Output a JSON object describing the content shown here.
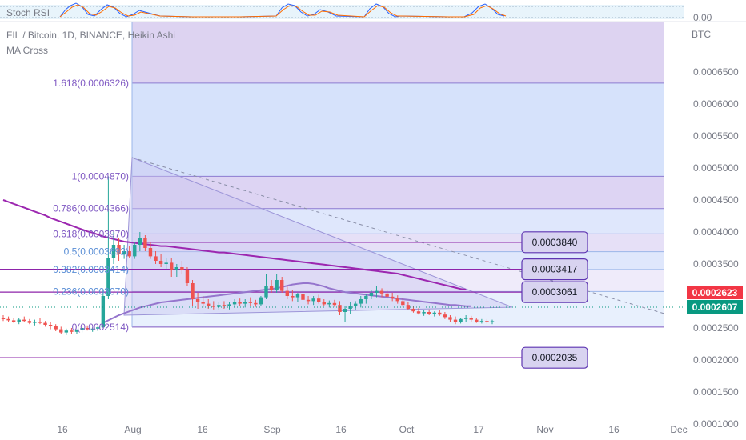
{
  "legend": {
    "symbol_line": "FIL / Bitcoin, 1D, BINANCE, Heikin Ashi",
    "indicator_line": "MA Cross",
    "stoch_label": "Stoch RSI"
  },
  "axis": {
    "currency": "BTC",
    "stoch_value": "0.00",
    "y_ticks": [
      "0.0006500",
      "0.0006000",
      "0.0005500",
      "0.0005000",
      "0.0004500",
      "0.0004000",
      "0.0003500",
      "0.0003000",
      "0.0002500",
      "0.0002000",
      "0.0001500",
      "0.0001000"
    ],
    "x_ticks": [
      "16",
      "Aug",
      "16",
      "Sep",
      "16",
      "Oct",
      "17",
      "Nov",
      "16",
      "Dec"
    ]
  },
  "price_tags": [
    {
      "label": "0.0002623",
      "color": "#f23645"
    },
    {
      "label": "0.0002607",
      "color": "#089981"
    }
  ],
  "chart_data": {
    "type": "candlestick",
    "title": "FIL / Bitcoin, 1D, BINANCE, Heikin Ashi",
    "ylabel": "BTC",
    "ylim": [
      9.75e-05,
      0.00068
    ],
    "scale": "linear",
    "grid": false,
    "fib_levels": [
      {
        "label": "1.618(0.0006326)",
        "ratio": 1.618,
        "value": 0.0006326
      },
      {
        "label": "1(0.0004870)",
        "ratio": 1,
        "value": 0.000487
      },
      {
        "label": "0.786(0.0004366)",
        "ratio": 0.786,
        "value": 0.0004366
      },
      {
        "label": "0.618(0.0003970)",
        "ratio": 0.618,
        "value": 0.000397
      },
      {
        "label": "0.5(0.0003692)",
        "ratio": 0.5,
        "value": 0.0003692
      },
      {
        "label": "0.382(0.0003414)",
        "ratio": 0.382,
        "value": 0.0003414
      },
      {
        "label": "0.236(0.0003070)",
        "ratio": 0.236,
        "value": 0.000307
      },
      {
        "label": "0(0.0002514)",
        "ratio": 0,
        "value": 0.0002514
      }
    ],
    "horizontal_levels": [
      "0.0003840",
      "0.0003417",
      "0.0003061",
      "0.0002035"
    ],
    "candles": [
      [
        0.000265,
        0.00027,
        0.000261,
        0.000264
      ],
      [
        0.000264,
        0.000268,
        0.00026,
        0.000262
      ],
      [
        0.000262,
        0.000266,
        0.000258,
        0.00026
      ],
      [
        0.00026,
        0.000265,
        0.000256,
        0.000263
      ],
      [
        0.000263,
        0.000268,
        0.000259,
        0.000261
      ],
      [
        0.000261,
        0.000264,
        0.000256,
        0.000258
      ],
      [
        0.000258,
        0.000263,
        0.000254,
        0.00026
      ],
      [
        0.00026,
        0.000265,
        0.000256,
        0.000258
      ],
      [
        0.000258,
        0.000261,
        0.000252,
        0.000255
      ],
      [
        0.000255,
        0.00026,
        0.000248,
        0.000253
      ],
      [
        0.000253,
        0.000256,
        0.000245,
        0.000248
      ],
      [
        0.000248,
        0.000252,
        0.00024,
        0.000243
      ],
      [
        0.000243,
        0.000249,
        0.000239,
        0.000246
      ],
      [
        0.000246,
        0.00025,
        0.00024,
        0.000244
      ],
      [
        0.000244,
        0.000248,
        0.000241,
        0.000247
      ],
      [
        0.000247,
        0.000252,
        0.000243,
        0.00025
      ],
      [
        0.00025,
        0.000254,
        0.000246,
        0.000248
      ],
      [
        0.000248,
        0.000251,
        0.000244,
        0.000249
      ],
      [
        0.000249,
        0.000253,
        0.000245,
        0.000251
      ],
      [
        0.000251,
        0.00031,
        0.00025,
        0.0003
      ],
      [
        0.0003,
        0.000487,
        0.000295,
        0.00036
      ],
      [
        0.00036,
        0.0004,
        0.00035,
        0.00038
      ],
      [
        0.00038,
        0.00039,
        0.000355,
        0.000365
      ],
      [
        0.000365,
        0.00038,
        0.000358,
        0.00037
      ],
      [
        0.00037,
        0.000378,
        0.00036,
        0.000362
      ],
      [
        0.000362,
        0.000385,
        0.000358,
        0.00038
      ],
      [
        0.00038,
        0.0004,
        0.00037,
        0.00039
      ],
      [
        0.00039,
        0.000395,
        0.00037,
        0.000375
      ],
      [
        0.000375,
        0.000385,
        0.000358,
        0.000362
      ],
      [
        0.000362,
        0.00037,
        0.00035,
        0.000355
      ],
      [
        0.000355,
        0.000365,
        0.000345,
        0.00035
      ],
      [
        0.00035,
        0.00036,
        0.000342,
        0.000352
      ],
      [
        0.000352,
        0.00036,
        0.00033,
        0.00034
      ],
      [
        0.00034,
        0.00035,
        0.00033,
        0.000345
      ],
      [
        0.000345,
        0.000355,
        0.000335,
        0.00034
      ],
      [
        0.00034,
        0.000345,
        0.000315,
        0.00032
      ],
      [
        0.00032,
        0.000325,
        0.000285,
        0.000295
      ],
      [
        0.000295,
        0.000305,
        0.00028,
        0.00029
      ],
      [
        0.00029,
        0.0003,
        0.000282,
        0.000288
      ],
      [
        0.000288,
        0.000295,
        0.00028,
        0.000285
      ],
      [
        0.000285,
        0.000292,
        0.000279,
        0.000283
      ],
      [
        0.000283,
        0.00029,
        0.000278,
        0.000286
      ],
      [
        0.000286,
        0.000292,
        0.00028,
        0.000284
      ],
      [
        0.000284,
        0.00029,
        0.000279,
        0.000287
      ],
      [
        0.000287,
        0.000295,
        0.000282,
        0.00029
      ],
      [
        0.00029,
        0.000296,
        0.000284,
        0.000288
      ],
      [
        0.000288,
        0.000295,
        0.000282,
        0.000291
      ],
      [
        0.000291,
        0.000298,
        0.000285,
        0.000289
      ],
      [
        0.000289,
        0.000294,
        0.000283,
        0.000287
      ],
      [
        0.000287,
        0.0003,
        0.000285,
        0.000298
      ],
      [
        0.000298,
        0.000335,
        0.000295,
        0.000315
      ],
      [
        0.000315,
        0.000325,
        0.000305,
        0.00031
      ],
      [
        0.00031,
        0.000335,
        0.000305,
        0.000325
      ],
      [
        0.000325,
        0.00033,
        0.000305,
        0.000308
      ],
      [
        0.000308,
        0.000315,
        0.000295,
        0.0003
      ],
      [
        0.0003,
        0.00031,
        0.000292,
        0.000298
      ],
      [
        0.000298,
        0.000305,
        0.00029,
        0.000303
      ],
      [
        0.000303,
        0.000306,
        0.00029,
        0.000294
      ],
      [
        0.000294,
        0.0003,
        0.000287,
        0.000292
      ],
      [
        0.000292,
        0.0003,
        0.000286,
        0.000296
      ],
      [
        0.000296,
        0.000302,
        0.000288,
        0.00029
      ],
      [
        0.00029,
        0.000295,
        0.000284,
        0.000287
      ],
      [
        0.000287,
        0.000293,
        0.000282,
        0.000289
      ],
      [
        0.000289,
        0.000294,
        0.000283,
        0.000286
      ],
      [
        0.000286,
        0.000292,
        0.00027,
        0.000275
      ],
      [
        0.000275,
        0.000285,
        0.00026,
        0.00028
      ],
      [
        0.00028,
        0.00029,
        0.000272,
        0.000285
      ],
      [
        0.000285,
        0.000292,
        0.000278,
        0.000288
      ],
      [
        0.000288,
        0.0003,
        0.000282,
        0.000295
      ],
      [
        0.000295,
        0.000303,
        0.000288,
        0.0003
      ],
      [
        0.0003,
        0.00031,
        0.000295,
        0.000305
      ],
      [
        0.000305,
        0.000315,
        0.000298,
        0.000308
      ],
      [
        0.000308,
        0.000312,
        0.000298,
        0.000304
      ],
      [
        0.000304,
        0.00031,
        0.000296,
        0.000299
      ],
      [
        0.000299,
        0.000305,
        0.000292,
        0.000296
      ],
      [
        0.000296,
        0.000301,
        0.000288,
        0.000292
      ],
      [
        0.000292,
        0.000297,
        0.000283,
        0.000286
      ],
      [
        0.000286,
        0.00029,
        0.000278,
        0.00028
      ],
      [
        0.00028,
        0.000285,
        0.000274,
        0.000276
      ],
      [
        0.000276,
        0.000281,
        0.000271,
        0.000273
      ],
      [
        0.000273,
        0.000278,
        0.000269,
        0.000275
      ],
      [
        0.000275,
        0.000279,
        0.00027,
        0.000272
      ],
      [
        0.000272,
        0.000276,
        0.000268,
        0.000274
      ],
      [
        0.000274,
        0.000278,
        0.000269,
        0.000271
      ],
      [
        0.000271,
        0.000275,
        0.000264,
        0.000267
      ],
      [
        0.000267,
        0.00027,
        0.00026,
        0.000263
      ],
      [
        0.000263,
        0.000268,
        0.000256,
        0.00026
      ],
      [
        0.00026,
        0.000266,
        0.000257,
        0.000264
      ],
      [
        0.000264,
        0.00027,
        0.00026,
        0.000266
      ],
      [
        0.000266,
        0.000269,
        0.00026,
        0.000263
      ],
      [
        0.000263,
        0.000266,
        0.000258,
        0.00026
      ],
      [
        0.00026,
        0.000264,
        0.000257,
        0.000261
      ],
      [
        0.000261,
        0.000264,
        0.000257,
        0.000259
      ],
      [
        0.000259,
        0.000263,
        0.000256,
        0.0002607
      ]
    ],
    "ma_long": [
      0.00045,
      0.000447,
      0.000444,
      0.000441,
      0.000438,
      0.000435,
      0.000432,
      0.000429,
      0.000426,
      0.000422,
      0.000419,
      0.000416,
      0.000413,
      0.00041,
      0.000407,
      0.000404,
      0.000401,
      0.000399,
      0.000396,
      0.000393,
      0.000391,
      0.000389,
      0.000387,
      0.000385,
      0.000384,
      0.000383,
      0.000382,
      0.000381,
      0.00038,
      0.000379,
      0.000378,
      0.000378,
      0.000377,
      0.000376,
      0.000375,
      0.000374,
      0.000373,
      0.000372,
      0.000371,
      0.00037,
      0.000369,
      0.000368,
      0.000368,
      0.000367,
      0.000366,
      0.000365,
      0.000364,
      0.000363,
      0.000362,
      0.000361,
      0.00036,
      0.000359,
      0.000358,
      0.000357,
      0.000356,
      0.000355,
      0.000354,
      0.000353,
      0.000352,
      0.000351,
      0.00035,
      0.000349,
      0.000348,
      0.000347,
      0.000346,
      0.000345,
      0.000344,
      0.000343,
      0.000342,
      0.000341,
      0.00034,
      0.000339,
      0.000338,
      0.000337,
      0.000336,
      0.000335,
      0.000333,
      0.000331,
      0.000329,
      0.000327,
      0.000325,
      0.000323,
      0.000321,
      0.000319,
      0.000317,
      0.000315,
      0.000313,
      0.000311,
      0.00031
    ],
    "ma_long_start": 0,
    "ma_short": [
      0.000258,
      0.000262,
      0.000266,
      0.00027,
      0.000273,
      0.000276,
      0.000279,
      0.000282,
      0.000284,
      0.000286,
      0.000288,
      0.00029,
      0.000291,
      0.000292,
      0.000293,
      0.000294,
      0.000295,
      0.000296,
      0.000297,
      0.000298,
      0.000299,
      0.0003,
      0.000301,
      0.000302,
      0.000303,
      0.000304,
      0.000305,
      0.000306,
      0.000307,
      0.000308,
      0.000309,
      0.00031,
      0.000311,
      0.000312,
      0.000314,
      0.000316,
      0.000318,
      0.000319,
      0.00032,
      0.00032,
      0.000319,
      0.000317,
      0.000315,
      0.000312,
      0.00031,
      0.000308,
      0.000306,
      0.000305,
      0.000304,
      0.000303,
      0.000302,
      0.000301,
      0.0003,
      0.000299,
      0.000298,
      0.000297,
      0.000296,
      0.000295,
      0.000294,
      0.000293,
      0.000292,
      0.000291,
      0.00029,
      0.000289,
      0.000288,
      0.000287,
      0.000286,
      0.000286,
      0.000285,
      0.000284,
      0.000284
    ],
    "ma_short_start": 19
  }
}
